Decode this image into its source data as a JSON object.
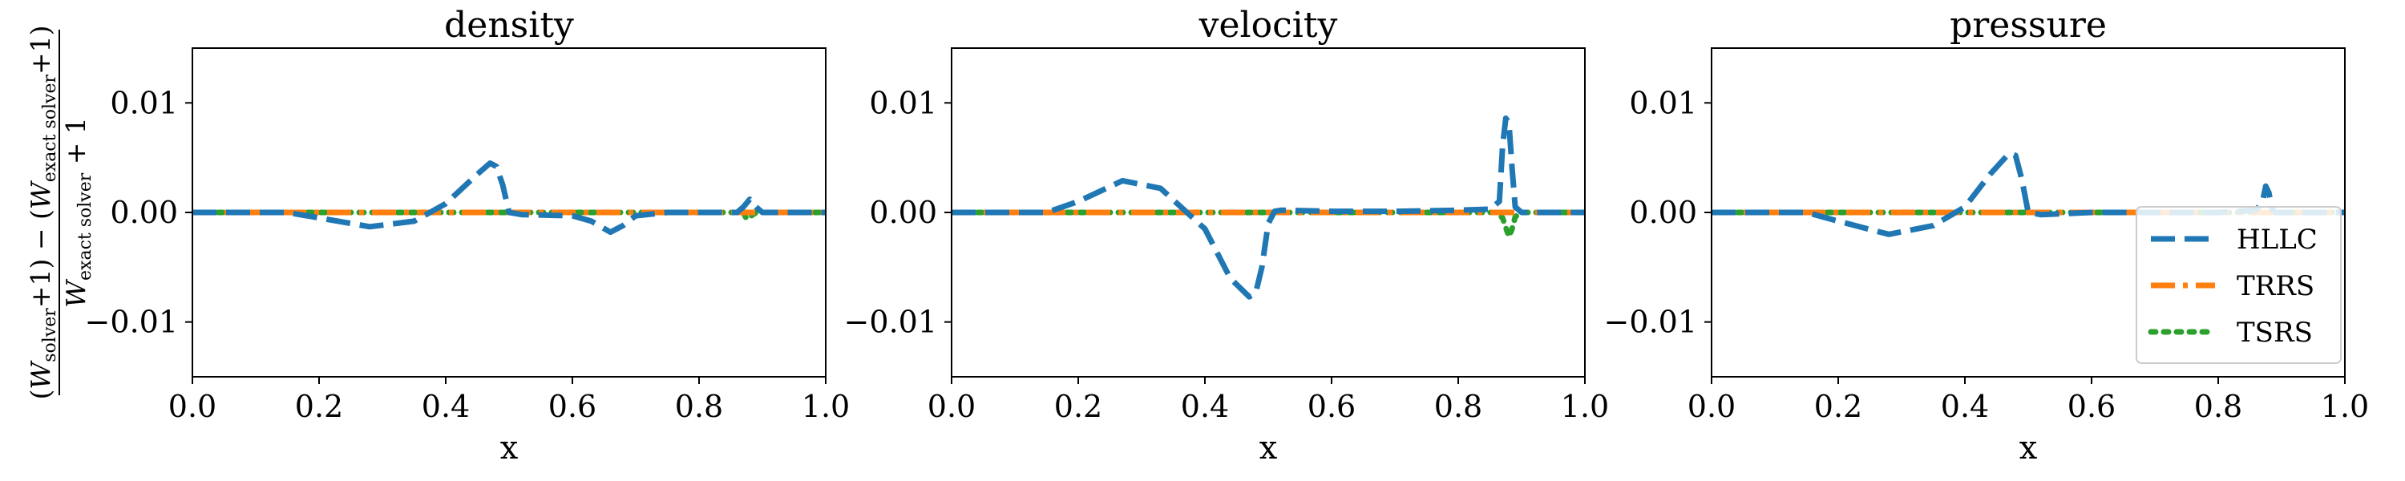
{
  "figure": {
    "ylabel": {
      "numerator_parts": [
        {
          "text": "("
        },
        {
          "text": "W",
          "italic": true
        },
        {
          "text": "solver",
          "sub": true
        },
        {
          "text": "+1) − ("
        },
        {
          "text": "W",
          "italic": true
        },
        {
          "text": "exact  solver",
          "sub": true
        },
        {
          "text": "+1)"
        }
      ],
      "denominator_parts": [
        {
          "text": "W",
          "italic": true
        },
        {
          "text": "exact  solver",
          "sub": true
        },
        {
          "text": " + 1"
        }
      ]
    },
    "legend": {
      "location": "lower-right of last panel",
      "entries": [
        {
          "label": "HLLC",
          "color": "#1f77b4",
          "style": "dashed"
        },
        {
          "label": "TRRS",
          "color": "#ff7f0e",
          "style": "dashdot"
        },
        {
          "label": "TSRS",
          "color": "#2ca02c",
          "style": "dotted"
        }
      ]
    }
  },
  "chart_data": [
    {
      "type": "line",
      "title": "density",
      "xlabel": "x",
      "xlim": [
        0.0,
        1.0
      ],
      "ylim": [
        -0.015,
        0.015
      ],
      "xticks": [
        "0.0",
        "0.2",
        "0.4",
        "0.6",
        "0.8",
        "1.0"
      ],
      "yticks": [
        "−0.01",
        "0.00",
        "0.01"
      ],
      "ytick_values": [
        -0.01,
        0.0,
        0.01
      ],
      "grid": false,
      "series": [
        {
          "name": "HLLC",
          "x": [
            0,
            0.15,
            0.2,
            0.28,
            0.35,
            0.4,
            0.45,
            0.47,
            0.48,
            0.49,
            0.5,
            0.52,
            0.6,
            0.63,
            0.66,
            0.68,
            0.7,
            0.75,
            0.86,
            0.87,
            0.88,
            0.89,
            0.9,
            1.0
          ],
          "y": [
            0,
            0,
            -0.0005,
            -0.0013,
            -0.0008,
            0.0008,
            0.0035,
            0.0045,
            0.0042,
            0.0025,
            0.0,
            -0.0002,
            -0.0003,
            -0.0008,
            -0.0018,
            -0.0012,
            -0.0003,
            0.0,
            0.0,
            0.0005,
            0.0012,
            0.0005,
            0.0,
            0.0
          ]
        },
        {
          "name": "TRRS",
          "x": [
            0,
            1.0
          ],
          "y": [
            0,
            0
          ]
        },
        {
          "name": "TSRS",
          "x": [
            0,
            0.86,
            0.87,
            0.875,
            0.88,
            0.89,
            1.0
          ],
          "y": [
            0,
            0,
            0,
            -0.0006,
            -0.0004,
            0,
            0
          ]
        }
      ]
    },
    {
      "type": "line",
      "title": "velocity",
      "xlabel": "x",
      "xlim": [
        0.0,
        1.0
      ],
      "ylim": [
        -0.015,
        0.015
      ],
      "xticks": [
        "0.0",
        "0.2",
        "0.4",
        "0.6",
        "0.8",
        "1.0"
      ],
      "yticks": [
        "−0.01",
        "0.00",
        "0.01"
      ],
      "ytick_values": [
        -0.01,
        0.0,
        0.01
      ],
      "grid": false,
      "series": [
        {
          "name": "HLLC",
          "x": [
            0,
            0.15,
            0.2,
            0.27,
            0.33,
            0.4,
            0.44,
            0.47,
            0.48,
            0.49,
            0.5,
            0.51,
            0.52,
            0.6,
            0.7,
            0.8,
            0.85,
            0.865,
            0.87,
            0.875,
            0.88,
            0.885,
            0.89,
            0.9,
            1.0
          ],
          "y": [
            0,
            0,
            0.001,
            0.0029,
            0.0022,
            -0.0015,
            -0.006,
            -0.0077,
            -0.0074,
            -0.005,
            -0.001,
            0.0001,
            0.0002,
            0.0001,
            0.0001,
            0.0002,
            0.0003,
            0.001,
            0.006,
            0.0086,
            0.0082,
            0.004,
            0.0005,
            0.0,
            0.0
          ]
        },
        {
          "name": "TRRS",
          "x": [
            0,
            1.0
          ],
          "y": [
            0,
            0
          ]
        },
        {
          "name": "TSRS",
          "x": [
            0,
            0.86,
            0.87,
            0.88,
            0.885,
            0.89,
            0.9,
            1.0
          ],
          "y": [
            0,
            0,
            -0.0005,
            -0.0022,
            -0.0015,
            -0.0004,
            0,
            0
          ]
        }
      ]
    },
    {
      "type": "line",
      "title": "pressure",
      "xlabel": "x",
      "xlim": [
        0.0,
        1.0
      ],
      "ylim": [
        -0.015,
        0.015
      ],
      "xticks": [
        "0.0",
        "0.2",
        "0.4",
        "0.6",
        "0.8",
        "1.0"
      ],
      "yticks": [
        "−0.01",
        "0.00",
        "0.01"
      ],
      "ytick_values": [
        -0.01,
        0.0,
        0.01
      ],
      "grid": false,
      "series": [
        {
          "name": "HLLC",
          "x": [
            0,
            0.15,
            0.2,
            0.28,
            0.35,
            0.4,
            0.44,
            0.47,
            0.48,
            0.49,
            0.5,
            0.52,
            0.6,
            0.8,
            0.86,
            0.87,
            0.875,
            0.88,
            0.885,
            0.89,
            1.0
          ],
          "y": [
            0,
            0,
            -0.0008,
            -0.002,
            -0.0012,
            0.0005,
            0.0035,
            0.0054,
            0.0052,
            0.003,
            0.0,
            -0.0002,
            0.0,
            0.0,
            0.0002,
            0.001,
            0.0024,
            0.0018,
            0.0003,
            0.0,
            0.0
          ]
        },
        {
          "name": "TRRS",
          "x": [
            0,
            1.0
          ],
          "y": [
            0,
            0
          ]
        },
        {
          "name": "TSRS",
          "x": [
            0,
            1.0
          ],
          "y": [
            0,
            0
          ]
        }
      ]
    }
  ]
}
